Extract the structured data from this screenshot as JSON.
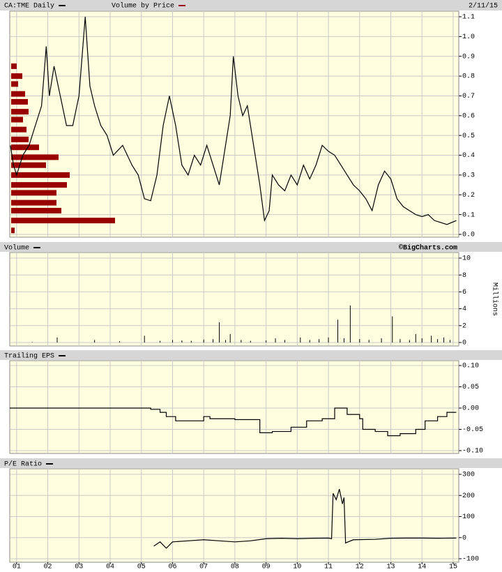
{
  "chart_data": [
    {
      "type": "line",
      "date_label": "2/11/15",
      "xlim": [
        2000.78,
        2015.18
      ],
      "ylim": [
        0,
        1.1
      ],
      "yticks": [
        {
          "value": 0,
          "label": "0.0"
        },
        0.1,
        0.2,
        0.3,
        0.4,
        0.5,
        0.6,
        0.7,
        0.8,
        0.9,
        {
          "value": 1,
          "label": "1.0"
        },
        1.1
      ],
      "grid": true,
      "series": [
        {
          "name": "CA:TME Daily",
          "color": "#000000",
          "x": [
            2000.8,
            2000.9,
            2001.0,
            2001.2,
            2001.4,
            2001.6,
            2001.8,
            2001.95,
            2002.05,
            2002.2,
            2002.4,
            2002.6,
            2002.8,
            2003.0,
            2003.2,
            2003.35,
            2003.5,
            2003.7,
            2003.9,
            2004.1,
            2004.4,
            2004.7,
            2004.9,
            2005.1,
            2005.3,
            2005.5,
            2005.7,
            2005.9,
            2006.1,
            2006.3,
            2006.5,
            2006.7,
            2006.9,
            2007.1,
            2007.3,
            2007.5,
            2007.7,
            2007.85,
            2007.95,
            2008.1,
            2008.25,
            2008.4,
            2008.6,
            2008.8,
            2008.95,
            2009.1,
            2009.2,
            2009.4,
            2009.6,
            2009.8,
            2010.0,
            2010.2,
            2010.4,
            2010.6,
            2010.8,
            2011.0,
            2011.2,
            2011.4,
            2011.6,
            2011.8,
            2012.0,
            2012.2,
            2012.4,
            2012.6,
            2012.8,
            2013.0,
            2013.2,
            2013.4,
            2013.6,
            2013.8,
            2014.0,
            2014.2,
            2014.4,
            2014.6,
            2014.8,
            2015.1
          ],
          "values": [
            0.45,
            0.35,
            0.3,
            0.4,
            0.45,
            0.55,
            0.65,
            0.95,
            0.7,
            0.85,
            0.7,
            0.55,
            0.55,
            0.7,
            1.1,
            0.75,
            0.65,
            0.55,
            0.5,
            0.4,
            0.45,
            0.35,
            0.3,
            0.18,
            0.17,
            0.3,
            0.55,
            0.7,
            0.55,
            0.35,
            0.3,
            0.4,
            0.35,
            0.45,
            0.35,
            0.25,
            0.45,
            0.6,
            0.9,
            0.7,
            0.6,
            0.65,
            0.45,
            0.25,
            0.07,
            0.12,
            0.3,
            0.25,
            0.22,
            0.3,
            0.25,
            0.35,
            0.28,
            0.35,
            0.45,
            0.42,
            0.4,
            0.35,
            0.3,
            0.25,
            0.22,
            0.18,
            0.12,
            0.25,
            0.32,
            0.28,
            0.18,
            0.14,
            0.12,
            0.1,
            0.09,
            0.1,
            0.07,
            0.06,
            0.05,
            0.07
          ]
        }
      ],
      "volume_by_price": {
        "name": "Volume by Price",
        "color": "#990000",
        "price_levels": [
          0.85,
          0.8,
          0.76,
          0.71,
          0.67,
          0.62,
          0.58,
          0.53,
          0.48,
          0.44,
          0.39,
          0.35,
          0.3,
          0.25,
          0.21,
          0.16,
          0.12,
          0.07,
          0.02
        ],
        "values": [
          8,
          16,
          10,
          20,
          24,
          25,
          17,
          22,
          25,
          40,
          68,
          50,
          84,
          80,
          65,
          65,
          72,
          149,
          5
        ]
      }
    },
    {
      "type": "bar",
      "credit": "©BigCharts.com",
      "y_label": "Millions",
      "xlim": [
        2000.78,
        2015.18
      ],
      "ylim": [
        0,
        10
      ],
      "yticks": [
        0,
        2,
        4,
        6,
        8,
        10
      ],
      "grid": true,
      "series": [
        {
          "name": "Volume",
          "color": "#000000",
          "x": [
            2001.5,
            2002.3,
            2003.5,
            2004.3,
            2005.1,
            2005.6,
            2006.0,
            2006.3,
            2006.6,
            2007.0,
            2007.3,
            2007.5,
            2007.7,
            2007.85,
            2008.2,
            2008.5,
            2009.0,
            2009.3,
            2009.6,
            2010.1,
            2010.4,
            2010.7,
            2011.0,
            2011.3,
            2011.5,
            2011.7,
            2012.0,
            2012.3,
            2012.7,
            2013.05,
            2013.3,
            2013.6,
            2013.8,
            2014.0,
            2014.3,
            2014.5,
            2014.7,
            2014.9
          ],
          "values": [
            0.05,
            0.6,
            0.3,
            0.15,
            0.8,
            0.2,
            0.3,
            0.25,
            0.2,
            0.35,
            0.4,
            2.4,
            0.3,
            1.0,
            0.3,
            0.2,
            0.25,
            0.5,
            0.3,
            0.6,
            0.3,
            0.4,
            0.6,
            2.7,
            0.5,
            4.4,
            0.4,
            0.3,
            0.5,
            3.1,
            0.4,
            0.3,
            1.0,
            0.5,
            0.8,
            0.4,
            0.6,
            0.3
          ]
        }
      ]
    },
    {
      "type": "step",
      "xlim": [
        2000.78,
        2015.18
      ],
      "ylim": [
        -0.1,
        0.1
      ],
      "yticks": [
        {
          "value": -0.1,
          "label": "-0.10"
        },
        -0.05,
        {
          "value": 0,
          "label": "0.00"
        },
        0.05,
        {
          "value": 0.1,
          "label": "0.10"
        }
      ],
      "grid": true,
      "series": [
        {
          "name": "Trailing EPS",
          "color": "#000000",
          "x": [
            2000.78,
            2005.3,
            2005.6,
            2005.8,
            2006.1,
            2007.0,
            2007.2,
            2008.0,
            2008.8,
            2009.2,
            2009.8,
            2010.3,
            2010.8,
            2011.2,
            2011.6,
            2012.0,
            2012.1,
            2012.5,
            2012.9,
            2013.3,
            2013.8,
            2014.1,
            2014.5,
            2014.8,
            2015.1
          ],
          "values": [
            0,
            -0.003,
            -0.01,
            -0.02,
            -0.03,
            -0.02,
            -0.025,
            -0.027,
            -0.058,
            -0.055,
            -0.045,
            -0.03,
            -0.025,
            0.0,
            -0.015,
            -0.025,
            -0.05,
            -0.055,
            -0.065,
            -0.06,
            -0.05,
            -0.03,
            -0.02,
            -0.01,
            -0.01
          ]
        }
      ]
    },
    {
      "type": "line",
      "xlim": [
        2000.78,
        2015.18
      ],
      "ylim": [
        -100,
        300
      ],
      "yticks": [
        -100,
        0,
        100,
        200,
        300
      ],
      "grid": true,
      "xticks": [
        {
          "value": 2001,
          "label": "01"
        },
        {
          "value": 2002,
          "label": "02"
        },
        {
          "value": 2003,
          "label": "03"
        },
        {
          "value": 2004,
          "label": "04"
        },
        {
          "value": 2005,
          "label": "05"
        },
        {
          "value": 2006,
          "label": "06"
        },
        {
          "value": 2007,
          "label": "07"
        },
        {
          "value": 2008,
          "label": "08"
        },
        {
          "value": 2009,
          "label": "09"
        },
        {
          "value": 2010,
          "label": "10"
        },
        {
          "value": 2011,
          "label": "11"
        },
        {
          "value": 2012,
          "label": "12"
        },
        {
          "value": 2013,
          "label": "13"
        },
        {
          "value": 2014,
          "label": "14"
        },
        {
          "value": 2015,
          "label": "15"
        }
      ],
      "series": [
        {
          "name": "P/E Ratio",
          "color": "#000000",
          "x": [
            2005.4,
            2005.6,
            2005.8,
            2006.0,
            2006.5,
            2007.0,
            2007.5,
            2008.0,
            2008.5,
            2009.0,
            2009.5,
            2010.0,
            2010.5,
            2011.0,
            2011.1,
            2011.15,
            2011.25,
            2011.35,
            2011.45,
            2011.5,
            2011.55,
            2011.8,
            2012.5,
            2013.0,
            2013.5,
            2014.0,
            2014.5,
            2015.1
          ],
          "values": [
            -40,
            -20,
            -50,
            -20,
            -15,
            -10,
            -15,
            -20,
            -15,
            -5,
            -3,
            -5,
            -3,
            -2,
            -5,
            210,
            180,
            230,
            160,
            190,
            -25,
            -10,
            -8,
            -3,
            -2,
            -2,
            -3,
            -2
          ]
        }
      ]
    }
  ]
}
